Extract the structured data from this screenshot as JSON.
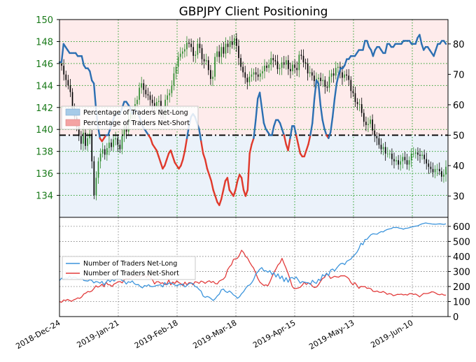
{
  "chart_data": [
    {
      "type": "line",
      "title": "GBPJPY Client Positioning",
      "left_axis": {
        "ticks": [
          134,
          136,
          138,
          140,
          142,
          144,
          146,
          148,
          150
        ],
        "ylim": [
          132,
          150
        ],
        "tick_color": "#1a7a1a"
      },
      "right_axis": {
        "ticks": [
          30,
          40,
          50,
          60,
          70,
          80
        ],
        "ylim": [
          23,
          88
        ]
      },
      "x_tick_labels": [
        "2018-Dec-24",
        "2019-Jan-21",
        "2019-Feb-18",
        "2019-Mar-18",
        "2019-Apr-15",
        "2019-May-13",
        "2019-Jun-10"
      ],
      "legend": {
        "placement": "middle-left",
        "entries": [
          {
            "label": "Percentage of Traders Net-Long",
            "color": "#a6cbe8"
          },
          {
            "label": "Percentage of Traders Net-Short",
            "color": "#f4a3a3"
          }
        ]
      },
      "reference_line": {
        "value": 50,
        "style": "dash-dot",
        "color": "#000000"
      },
      "series": [
        {
          "kind": "candlestick",
          "up_color": "#2e8b2e",
          "down_color": "#000000",
          "close": [
            146,
            145.8,
            145,
            144.5,
            144,
            143.4,
            141.9,
            141.1,
            140.2,
            139.4,
            138.7,
            139.7,
            138.5,
            139.2,
            139.6,
            137.1,
            134,
            135.6,
            137.1,
            137.8,
            138.2,
            137.7,
            138.3,
            138.8,
            138.4,
            139.1,
            139.2,
            138.6,
            138.2,
            139.4,
            140.3,
            139.8,
            141,
            141.5,
            141.6,
            142.3,
            142.7,
            143.8,
            144.2,
            143.6,
            143.2,
            143.1,
            142.7,
            142.4,
            142.1,
            142.5,
            142.6,
            141.6,
            141.3,
            142.7,
            143.1,
            143.3,
            144,
            145.1,
            145.7,
            146.6,
            146.9,
            147.1,
            147.3,
            147.9,
            147.8,
            147.5,
            146.7,
            146.8,
            147.8,
            147.4,
            146.4,
            146.2,
            146.3,
            145.4,
            144.6,
            144.8,
            146.6,
            147.1,
            146.6,
            147.5,
            146.9,
            147.8,
            147.5,
            148,
            147.7,
            148.3,
            147.6,
            146.5,
            145.7,
            145.2,
            144.7,
            144.3,
            144.8,
            145,
            145.2,
            145,
            144.8,
            145.1,
            145.3,
            145.8,
            145.6,
            145.9,
            146.5,
            146.3,
            146.2,
            145.5,
            145.6,
            146.1,
            145.9,
            146.3,
            145.5,
            145.3,
            145.9,
            145.6,
            145.4,
            146.8,
            146.7,
            146.1,
            146,
            145.1,
            145.2,
            144.9,
            144.4,
            144.6,
            144.7,
            144.4,
            144.5,
            143.9,
            143.8,
            144.8,
            145.1,
            144.9,
            145.6,
            145.7,
            145.2,
            144.7,
            145,
            144.9,
            144.5,
            143.5,
            143.3,
            142.5,
            142.3,
            142.3,
            141.5,
            140.7,
            140.4,
            140.5,
            140.9,
            139.9,
            139.4,
            139.2,
            138.6,
            138.2,
            138.4,
            137.8,
            137.8,
            137.8,
            137.3,
            137.1,
            137.2,
            136.8,
            137.1,
            137.5,
            137.2,
            136.8,
            137.2,
            137.8,
            137.8,
            137.9,
            137.7,
            137.6,
            137.7,
            137.3,
            136.9,
            136.6,
            136.4,
            136.1,
            136.4,
            136.4,
            136.2,
            135.7,
            135.9,
            136.6
          ]
        },
        {
          "name": "",
          "kind": "net-long-percent",
          "color": "#2b6fb2",
          "values": [
            74,
            74,
            80,
            79,
            78,
            77,
            77,
            77,
            77,
            76,
            76,
            76,
            73,
            72,
            72,
            71,
            68,
            67,
            59,
            53,
            49,
            48,
            49,
            50,
            50,
            52,
            54,
            56,
            57,
            57,
            57,
            59,
            61,
            61,
            60,
            59,
            57,
            58,
            58,
            57,
            55,
            53,
            52,
            51,
            50,
            49,
            47,
            46,
            45,
            43,
            41,
            39,
            40,
            42,
            44,
            45,
            43,
            41,
            40,
            39,
            40,
            42,
            45,
            49,
            53,
            56,
            57,
            56,
            54,
            52,
            48,
            44,
            42,
            39,
            37,
            35,
            32,
            30,
            28,
            27,
            29,
            32,
            35,
            36,
            32,
            31,
            30,
            32,
            35,
            37,
            36,
            32,
            30,
            32,
            44,
            47,
            49,
            55,
            62,
            64,
            59,
            54,
            52,
            51,
            50,
            50,
            53,
            55,
            55,
            54,
            52,
            50,
            47,
            45,
            49,
            53,
            53,
            50,
            47,
            44,
            43,
            43,
            45,
            47,
            50,
            54,
            62,
            68,
            67,
            60,
            55,
            52,
            50,
            49,
            51,
            56,
            62,
            67,
            70,
            72,
            72,
            73,
            75,
            75,
            76,
            76,
            76,
            77,
            78,
            78,
            78,
            81,
            81,
            79,
            78,
            76,
            78,
            79,
            79,
            78,
            77,
            77,
            80,
            80,
            79,
            79,
            80,
            80,
            80,
            80,
            81,
            81,
            81,
            81,
            80,
            80,
            80,
            82,
            83,
            80,
            78,
            79,
            79,
            78,
            77,
            76,
            78,
            80,
            80,
            81,
            81,
            80
          ]
        }
      ]
    },
    {
      "type": "line",
      "right_axis": {
        "ticks": [
          0,
          100,
          200,
          300,
          400,
          500,
          600
        ],
        "ylim": [
          0,
          660
        ]
      },
      "legend": {
        "placement": "middle-left",
        "entries": [
          {
            "label": "Number of Traders Net-Long",
            "color": "#3b94dc"
          },
          {
            "label": "Number of Traders Net-Short",
            "color": "#e23b3b"
          }
        ]
      },
      "series": [
        {
          "name": "Number of Traders Net-Long",
          "color": "#3b94dc",
          "values": [
            240,
            255,
            249,
            257,
            253,
            271,
            253,
            263,
            260,
            251,
            249,
            260,
            240,
            238,
            236,
            245,
            240,
            224,
            233,
            230,
            222,
            234,
            210,
            228,
            245,
            231,
            247,
            236,
            249,
            255,
            251,
            239,
            235,
            216,
            232,
            227,
            237,
            219,
            212,
            213,
            199,
            191,
            207,
            202,
            212,
            201,
            199,
            202,
            207,
            209,
            212,
            197,
            227,
            211,
            222,
            224,
            219,
            210,
            203,
            213,
            211,
            217,
            197,
            207,
            220,
            223,
            219,
            201,
            195,
            180,
            169,
            136,
            128,
            134,
            129,
            118,
            107,
            119,
            137,
            149,
            178,
            183,
            167,
            160,
            170,
            159,
            144,
            136,
            122,
            132,
            152,
            166,
            188,
            205,
            210,
            225,
            247,
            282,
            297,
            315,
            326,
            304,
            305,
            295,
            306,
            280,
            292,
            263,
            284,
            252,
            270,
            233,
            259,
            228,
            257,
            260,
            251,
            264,
            244,
            222,
            233,
            229,
            226,
            225,
            214,
            241,
            227,
            221,
            248,
            240,
            279,
            268,
            289,
            272,
            310,
            316,
            303,
            322,
            339,
            352,
            354,
            346,
            368,
            375,
            382,
            400,
            412,
            427,
            452,
            488,
            478,
            513,
            514,
            531,
            545,
            551,
            549,
            548,
            558,
            565,
            563,
            573,
            579,
            583,
            585,
            593,
            592,
            593,
            588,
            586,
            581,
            587,
            588,
            591,
            596,
            598,
            602,
            603,
            610,
            616,
            619,
            623,
            620,
            618,
            616,
            615,
            614,
            616,
            617,
            615,
            613,
            617
          ]
        },
        {
          "name": "Number of Traders Net-Short",
          "color": "#e23b3b",
          "values": [
            100,
            95,
            110,
            107,
            114,
            107,
            102,
            111,
            116,
            124,
            121,
            131,
            150,
            156,
            167,
            164,
            170,
            186,
            205,
            196,
            202,
            215,
            198,
            228,
            212,
            211,
            200,
            217,
            223,
            232,
            233,
            224,
            244,
            253,
            249,
            256,
            267,
            274,
            263,
            270,
            261,
            272,
            277,
            259,
            275,
            258,
            244,
            217,
            232,
            232,
            221,
            225,
            213,
            215,
            244,
            211,
            230,
            220,
            238,
            226,
            219,
            206,
            229,
            210,
            226,
            225,
            211,
            232,
            229,
            221,
            236,
            231,
            221,
            232,
            238,
            227,
            234,
            220,
            217,
            236,
            243,
            249,
            265,
            310,
            331,
            345,
            380,
            384,
            388,
            410,
            441,
            426,
            400,
            388,
            361,
            339,
            322,
            289,
            255,
            230,
            218,
            207,
            211,
            205,
            231,
            264,
            293,
            316,
            343,
            357,
            387,
            353,
            321,
            286,
            247,
            201,
            186,
            187,
            190,
            195,
            209,
            228,
            214,
            224,
            219,
            202,
            193,
            196,
            211,
            233,
            253,
            260,
            285,
            274,
            254,
            261,
            268,
            264,
            262,
            271,
            271,
            271,
            263,
            252,
            227,
            212,
            226,
            208,
            188,
            201,
            199,
            200,
            188,
            189,
            184,
            168,
            166,
            170,
            162,
            161,
            167,
            159,
            148,
            153,
            150,
            139,
            142,
            148,
            147,
            149,
            144,
            147,
            143,
            153,
            152,
            147,
            150,
            142,
            131,
            143,
            154,
            153,
            154,
            158,
            165,
            163,
            156,
            148,
            145,
            150,
            143,
            142
          ]
        }
      ]
    }
  ]
}
